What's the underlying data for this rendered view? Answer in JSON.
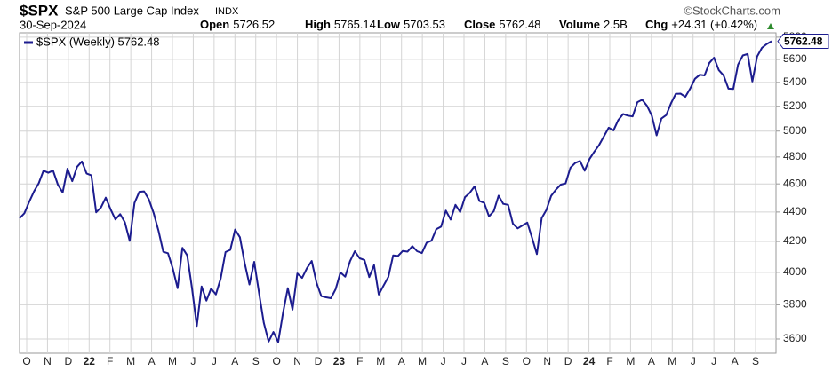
{
  "header": {
    "symbol": "$SPX",
    "name": "S&P 500 Large Cap Index",
    "exchange": "INDX",
    "brand": "©StockCharts.com",
    "date": "30-Sep-2024",
    "stats": [
      {
        "label": "Open",
        "value": "5726.52"
      },
      {
        "label": "High",
        "value": "5765.14"
      },
      {
        "label": "Low",
        "value": "5703.53"
      },
      {
        "label": "Close",
        "value": "5762.48"
      },
      {
        "label": "Volume",
        "value": "2.5B"
      },
      {
        "label": "Chg",
        "value": "+24.31 (+0.42%)"
      }
    ]
  },
  "chart_data": {
    "type": "line",
    "log_scale": true,
    "grid": true,
    "x_tick_labels": [
      "O",
      "N",
      "D",
      "22",
      "F",
      "M",
      "A",
      "M",
      "J",
      "J",
      "A",
      "S",
      "O",
      "N",
      "D",
      "23",
      "F",
      "M",
      "A",
      "M",
      "J",
      "J",
      "A",
      "S",
      "O",
      "N",
      "D",
      "24",
      "F",
      "M",
      "A",
      "M",
      "J",
      "J",
      "A",
      "S"
    ],
    "ylim": [
      3520,
      5840
    ],
    "yticks": [
      3600,
      3800,
      4000,
      4200,
      4400,
      4600,
      4800,
      5000,
      5200,
      5400,
      5600,
      5800
    ],
    "series": [
      {
        "name": "$SPX (Weekly) 5762.48",
        "color": "#1c1c8f",
        "values": [
          4357,
          4391,
          4471,
          4545,
          4605,
          4697,
          4682,
          4698,
          4595,
          4538,
          4712,
          4620,
          4726,
          4766,
          4677,
          4662,
          4398,
          4432,
          4501,
          4419,
          4349,
          4385,
          4329,
          4204,
          4463,
          4543,
          4546,
          4488,
          4392,
          4272,
          4132,
          4123,
          4024,
          3901,
          4158,
          4109,
          3901,
          3675,
          3912,
          3825,
          3899,
          3863,
          3962,
          4130,
          4145,
          4280,
          4228,
          4058,
          3924,
          4067,
          3873,
          3693,
          3586,
          3640,
          3583,
          3752,
          3901,
          3771,
          3993,
          3965,
          4026,
          4072,
          3934,
          3852,
          3845,
          3840,
          3895,
          3999,
          3973,
          4071,
          4136,
          4090,
          4079,
          3970,
          4046,
          3862,
          3917,
          3971,
          4109,
          4105,
          4138,
          4133,
          4169,
          4136,
          4124,
          4192,
          4205,
          4282,
          4299,
          4410,
          4348,
          4450,
          4399,
          4505,
          4536,
          4582,
          4478,
          4464,
          4370,
          4406,
          4515,
          4457,
          4450,
          4320,
          4288,
          4308,
          4327,
          4224,
          4117,
          4358,
          4415,
          4514,
          4559,
          4595,
          4604,
          4719,
          4755,
          4770,
          4697,
          4784,
          4840,
          4891,
          4959,
          5027,
          5006,
          5089,
          5137,
          5124,
          5117,
          5234,
          5254,
          5204,
          5123,
          4967,
          5100,
          5128,
          5223,
          5303,
          5305,
          5278,
          5347,
          5431,
          5465,
          5460,
          5567,
          5615,
          5505,
          5459,
          5347,
          5344,
          5554,
          5635,
          5648,
          5408,
          5626,
          5703,
          5738,
          5762.48
        ]
      }
    ]
  }
}
